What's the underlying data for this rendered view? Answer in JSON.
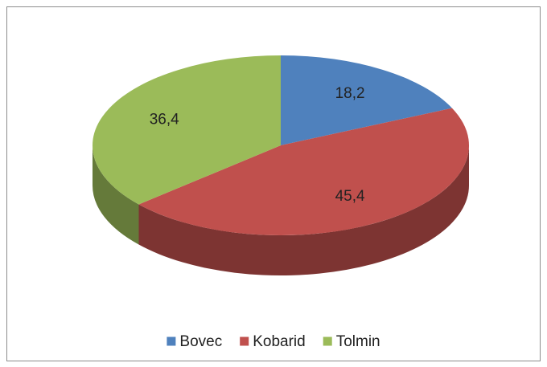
{
  "chart_data": {
    "type": "pie",
    "categories": [
      "Bovec",
      "Kobarid",
      "Tolmin"
    ],
    "values": [
      18.2,
      45.4,
      36.4
    ],
    "value_labels": [
      "18,2",
      "45,4",
      "36,4"
    ],
    "colors": [
      "#4f81bd",
      "#c0504d",
      "#9bbb59"
    ],
    "legend": "bottom"
  }
}
